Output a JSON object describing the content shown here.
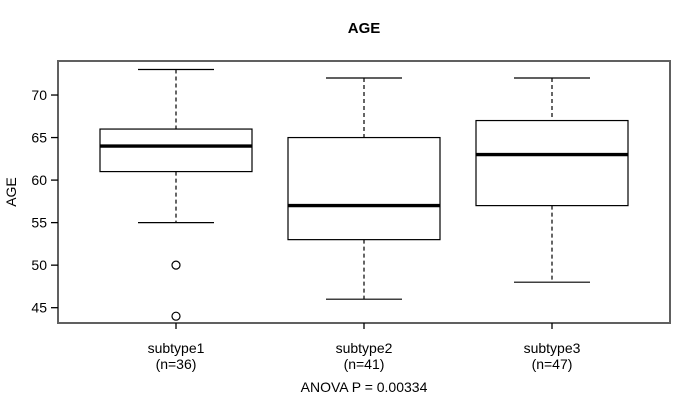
{
  "chart_data": {
    "type": "boxplot",
    "title": "AGE",
    "ylabel": "AGE",
    "xlabel": "",
    "annotation": "ANOVA P = 0.00334",
    "ylim": [
      43.2,
      74.0
    ],
    "yticks": [
      45,
      50,
      55,
      60,
      65,
      70
    ],
    "grid": false,
    "legend": null,
    "groups": [
      {
        "label": "subtype1",
        "sublabel": "(n=36)",
        "n": 36,
        "whisker_low": 55,
        "q1": 61,
        "median": 64,
        "q3": 66,
        "whisker_high": 73,
        "outliers": [
          50,
          44
        ]
      },
      {
        "label": "subtype2",
        "sublabel": "(n=41)",
        "n": 41,
        "whisker_low": 46,
        "q1": 53,
        "median": 57,
        "q3": 65,
        "whisker_high": 72,
        "outliers": []
      },
      {
        "label": "subtype3",
        "sublabel": "(n=47)",
        "n": 47,
        "whisker_low": 48,
        "q1": 57,
        "median": 63,
        "q3": 67,
        "whisker_high": 72,
        "outliers": []
      }
    ],
    "colors": {
      "frame": "#606060",
      "line": "#000000",
      "box_fill": "#ffffff",
      "text": "#000000",
      "background": "#ffffff"
    }
  }
}
